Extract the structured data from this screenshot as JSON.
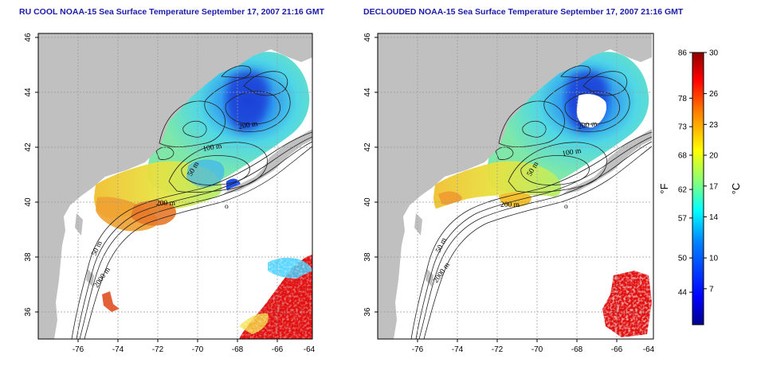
{
  "panels": [
    {
      "id": "left",
      "title": "RU COOL NOAA-15 Sea Surface Temperature September 17, 2007 21:16 GMT",
      "variant": "cloudy"
    },
    {
      "id": "right",
      "title": "DECLOUDED NOAA-15 Sea Surface Temperature September 17, 2007 21:16 GMT",
      "variant": "declouded"
    }
  ],
  "lon_ticks": [
    "-76",
    "-74",
    "-72",
    "-70",
    "-68",
    "-66",
    "-64"
  ],
  "lat_ticks": [
    "46",
    "44",
    "42",
    "40",
    "38",
    "36"
  ],
  "contour_labels": [
    "200 m",
    "100 m",
    "50 m",
    "200 m",
    "50 m",
    "2000 m",
    "100 m",
    "o"
  ],
  "colorbar": {
    "unit_f": "°F",
    "unit_c": "°C",
    "f_ticks": [
      "86",
      "78",
      "73",
      "68",
      "62",
      "57",
      "50",
      "44"
    ],
    "c_ticks": [
      "30",
      "26",
      "23",
      "20",
      "17",
      "14",
      "10",
      "7"
    ],
    "f_values": [
      86,
      78,
      73,
      68,
      62,
      57,
      50,
      44
    ],
    "c_values": [
      30,
      26,
      23,
      20,
      17,
      14,
      10,
      7
    ],
    "c_min": 3.5,
    "c_max": 30,
    "colors": [
      "#00008f",
      "#0000ff",
      "#0080ff",
      "#00ffff",
      "#80ff80",
      "#ffff00",
      "#ff8000",
      "#ff0000",
      "#8f0000"
    ]
  },
  "colors": {
    "land": "#c0c0c0",
    "ocean": "#ffffff",
    "title": "#1a1aa8",
    "grid": "#9a9a9a"
  }
}
